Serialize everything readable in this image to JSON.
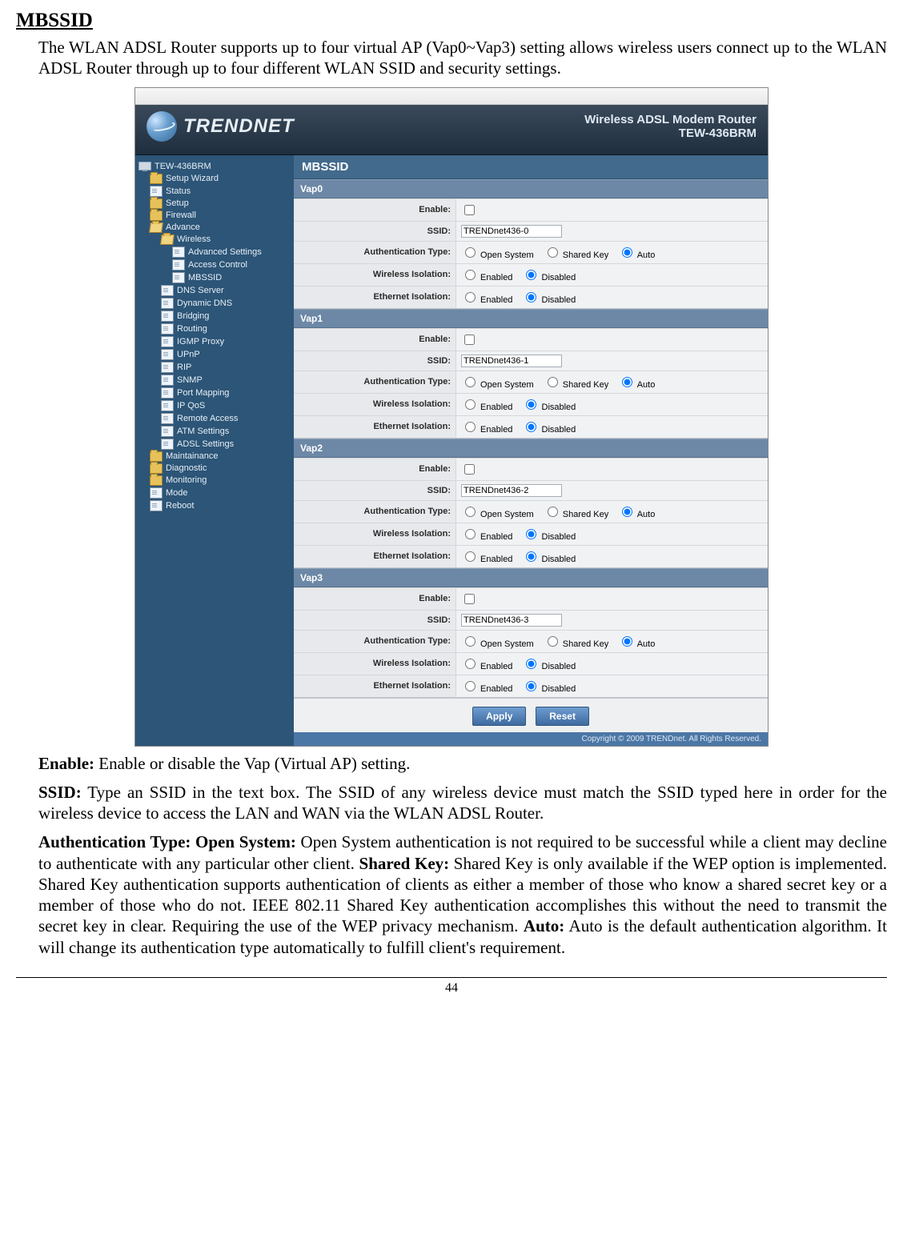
{
  "heading": "MBSSID",
  "intro": "The WLAN ADSL Router supports up to four virtual AP (Vap0~Vap3) setting allows wireless users connect up to the WLAN ADSL Router through up to four different WLAN SSID and security settings.",
  "screenshot": {
    "brand_text": "TRENDNET",
    "brand_right_line1": "Wireless ADSL Modem Router",
    "brand_right_line2": "TEW-436BRM",
    "panel_title": "MBSSID",
    "sidebar": {
      "root": "TEW-436BRM",
      "groups": [
        {
          "label": "Setup Wizard",
          "type": "folder"
        },
        {
          "label": "Status",
          "type": "page"
        },
        {
          "label": "Setup",
          "type": "folder"
        },
        {
          "label": "Firewall",
          "type": "folder"
        },
        {
          "label": "Advance",
          "type": "folder-open",
          "children": [
            {
              "label": "Wireless",
              "type": "folder-open",
              "children": [
                {
                  "label": "Advanced Settings",
                  "type": "page"
                },
                {
                  "label": "Access Control",
                  "type": "page"
                },
                {
                  "label": "MBSSID",
                  "type": "page"
                }
              ]
            },
            {
              "label": "DNS Server",
              "type": "page"
            },
            {
              "label": "Dynamic DNS",
              "type": "page"
            },
            {
              "label": "Bridging",
              "type": "page"
            },
            {
              "label": "Routing",
              "type": "page"
            },
            {
              "label": "IGMP Proxy",
              "type": "page"
            },
            {
              "label": "UPnP",
              "type": "page"
            },
            {
              "label": "RIP",
              "type": "page"
            },
            {
              "label": "SNMP",
              "type": "page"
            },
            {
              "label": "Port Mapping",
              "type": "page"
            },
            {
              "label": "IP QoS",
              "type": "page"
            },
            {
              "label": "Remote Access",
              "type": "page"
            },
            {
              "label": "ATM Settings",
              "type": "page"
            },
            {
              "label": "ADSL Settings",
              "type": "page"
            }
          ]
        },
        {
          "label": "Maintainance",
          "type": "folder"
        },
        {
          "label": "Diagnostic",
          "type": "folder"
        },
        {
          "label": "Monitoring",
          "type": "folder"
        },
        {
          "label": "Mode",
          "type": "page"
        },
        {
          "label": "Reboot",
          "type": "page"
        }
      ]
    },
    "row_labels": {
      "enable": "Enable:",
      "ssid": "SSID:",
      "auth": "Authentication Type:",
      "wiso": "Wireless Isolation:",
      "eiso": "Ethernet Isolation:"
    },
    "auth_options": {
      "open": "Open System",
      "shared": "Shared Key",
      "auto": "Auto"
    },
    "iso_options": {
      "enabled": "Enabled",
      "disabled": "Disabled"
    },
    "vaps": [
      {
        "name": "Vap0",
        "enable": false,
        "ssid": "TRENDnet436-0",
        "auth": "auto",
        "wiso": "disabled",
        "eiso": "disabled"
      },
      {
        "name": "Vap1",
        "enable": false,
        "ssid": "TRENDnet436-1",
        "auth": "auto",
        "wiso": "disabled",
        "eiso": "disabled"
      },
      {
        "name": "Vap2",
        "enable": false,
        "ssid": "TRENDnet436-2",
        "auth": "auto",
        "wiso": "disabled",
        "eiso": "disabled"
      },
      {
        "name": "Vap3",
        "enable": false,
        "ssid": "TRENDnet436-3",
        "auth": "auto",
        "wiso": "disabled",
        "eiso": "disabled"
      }
    ],
    "buttons": {
      "apply": "Apply",
      "reset": "Reset"
    },
    "footer": "Copyright © 2009 TRENDnet. All Rights Reserved."
  },
  "desc_enable_label": "Enable:",
  "desc_enable_text": " Enable or disable the Vap (Virtual AP) setting.",
  "desc_ssid_label": "SSID:",
  "desc_ssid_text": " Type an SSID in the text box. The SSID of any wireless device must match the SSID typed here in order for the wireless device to access the LAN and WAN via the WLAN ADSL Router.",
  "desc_auth_label": "Authentication Type: Open System:",
  "desc_auth_text1": " Open System authentication is not required to be successful while a client may decline to authenticate with any particular other client. ",
  "desc_auth_shared_label": "Shared Key:",
  "desc_auth_text2": " Shared Key is only available if the WEP option is implemented. Shared Key authentication supports authentication of clients as either a member of those who know a shared secret key or a member of those who do not. IEEE 802.11 Shared Key authentication accomplishes this without the need to transmit the secret key in clear. Requiring the use of the WEP privacy mechanism. ",
  "desc_auth_auto_label": "Auto:",
  "desc_auth_text3": " Auto is the default authentication algorithm. It will change its authentication type automatically to fulfill client's requirement.",
  "page_number": "44"
}
